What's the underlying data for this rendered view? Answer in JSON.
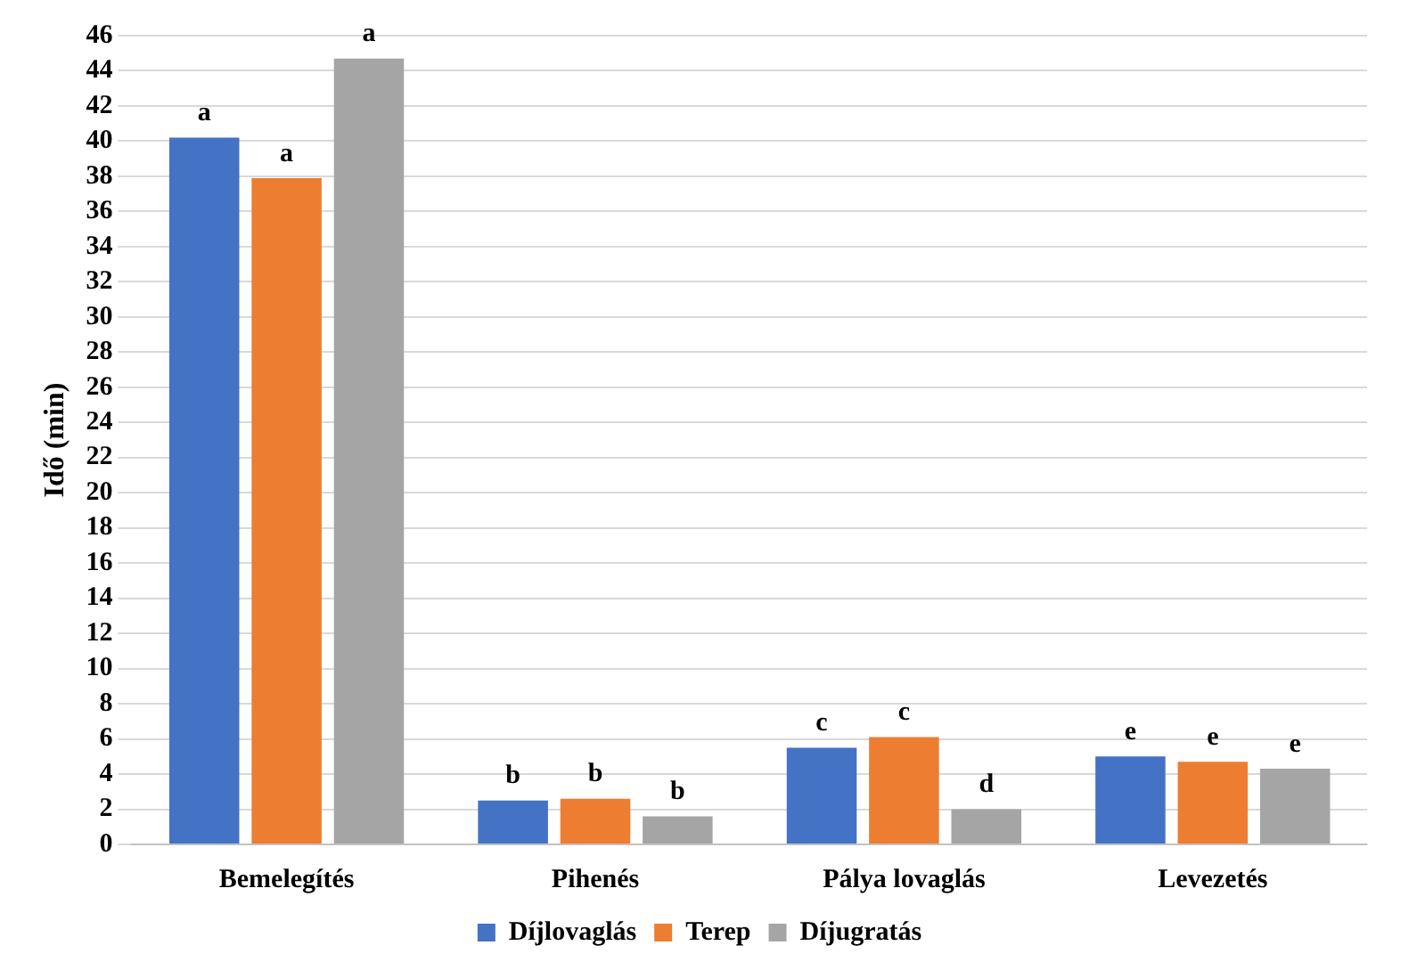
{
  "chart_data": {
    "type": "bar",
    "ylabel": "Idő (min)",
    "categories": [
      "Bemelegítés",
      "Pihenés",
      "Pálya lovaglás",
      "Levezetés"
    ],
    "series": [
      {
        "name": "Díjlovaglás",
        "color": "#4472c4",
        "values": [
          40.2,
          2.5,
          5.5,
          5.0
        ],
        "value_labels": [
          "a",
          "b",
          "c",
          "e"
        ]
      },
      {
        "name": "Terep",
        "color": "#ed7d31",
        "values": [
          37.9,
          2.6,
          6.1,
          4.7
        ],
        "value_labels": [
          "a",
          "b",
          "c",
          "e"
        ]
      },
      {
        "name": "Díjugratás",
        "color": "#a5a5a5",
        "values": [
          44.7,
          1.6,
          2.0,
          4.3
        ],
        "value_labels": [
          "a",
          "b",
          "d",
          "e"
        ]
      }
    ],
    "ylim": [
      0,
      46
    ],
    "yticks": [
      0,
      2,
      4,
      6,
      8,
      10,
      12,
      14,
      16,
      18,
      20,
      22,
      24,
      26,
      28,
      30,
      32,
      34,
      36,
      38,
      40,
      42,
      44,
      46
    ],
    "grid": "y",
    "legend": "bottom"
  }
}
